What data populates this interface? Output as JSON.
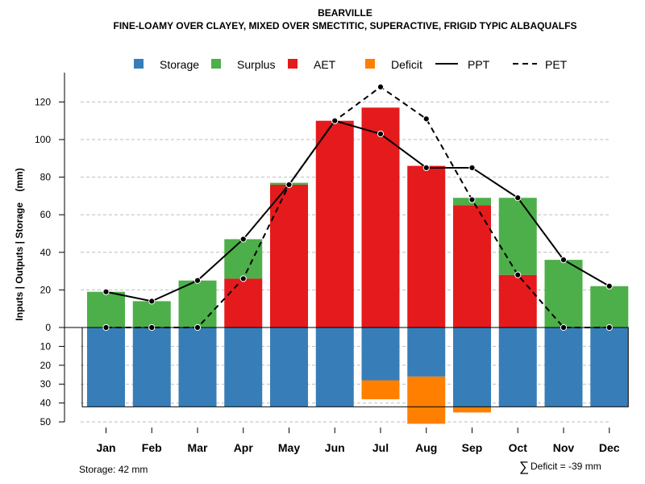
{
  "title": "BEARVILLE",
  "subtitle": "FINE-LOAMY OVER CLAYEY, MIXED OVER SMECTITIC, SUPERACTIVE, FRIGID TYPIC ALBAQUALFS",
  "legend": {
    "storage": "Storage",
    "surplus": "Surplus",
    "aet": "AET",
    "deficit": "Deficit",
    "ppt": "PPT",
    "pet": "PET"
  },
  "colors": {
    "storage": "#377EB8",
    "surplus": "#4DAF4A",
    "aet": "#E41A1C",
    "deficit": "#FF7F00",
    "grid": "#BEBEBE"
  },
  "footer": {
    "storage_note": "Storage: 42 mm",
    "deficit_symbol": "∑",
    "deficit_note": "Deficit = -39 mm"
  },
  "chart_data": {
    "type": "bar",
    "ylabel": "Inputs | Outputs | Storage    (mm)",
    "ylim_upper": [
      0,
      130
    ],
    "ylim_lower": [
      0,
      50
    ],
    "yticks_upper": [
      "0",
      "20",
      "40",
      "60",
      "80",
      "100",
      "120"
    ],
    "yticks_lower": [
      "10",
      "20",
      "30",
      "40",
      "50"
    ],
    "categories": [
      "Jan",
      "Feb",
      "Mar",
      "Apr",
      "May",
      "Jun",
      "Jul",
      "Aug",
      "Sep",
      "Oct",
      "Nov",
      "Dec"
    ],
    "series": [
      {
        "name": "AET",
        "values": [
          0,
          0,
          0,
          26,
          76,
          110,
          117,
          86,
          65,
          28,
          0,
          0
        ]
      },
      {
        "name": "Surplus",
        "values": [
          19,
          14,
          25,
          21,
          1,
          0,
          0,
          0,
          4,
          41,
          36,
          22
        ]
      },
      {
        "name": "Storage",
        "values": [
          42,
          42,
          42,
          42,
          42,
          42,
          28,
          26,
          42,
          42,
          42,
          42
        ]
      },
      {
        "name": "Deficit",
        "values": [
          0,
          0,
          0,
          0,
          0,
          0,
          10,
          25,
          3,
          0,
          0,
          0
        ]
      },
      {
        "name": "PPT",
        "values": [
          19,
          14,
          25,
          47,
          76,
          110,
          103,
          85,
          85,
          69,
          36,
          22
        ]
      },
      {
        "name": "PET",
        "values": [
          0,
          0,
          0,
          26,
          76,
          110,
          128,
          111,
          68,
          28,
          0,
          0
        ]
      }
    ],
    "storage_capacity": 42,
    "total_deficit": -39
  }
}
